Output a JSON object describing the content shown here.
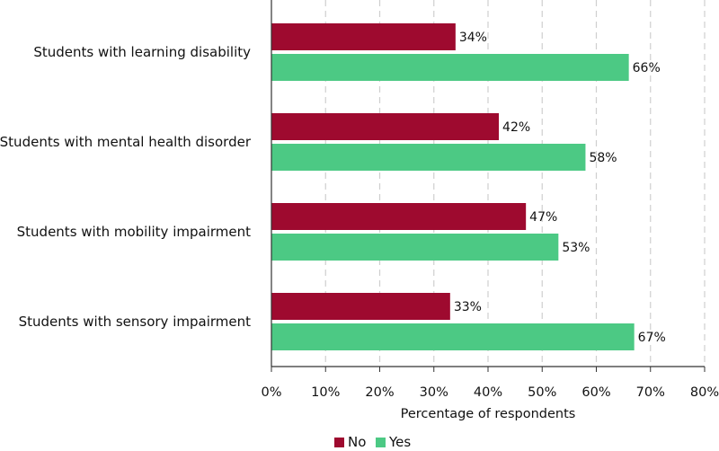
{
  "chart_data": {
    "type": "bar",
    "orientation": "horizontal",
    "categories": [
      "Students with learning disability",
      "Students with mental health disorder",
      "Students with mobility impairment",
      "Students with sensory impairment"
    ],
    "series": [
      {
        "name": "No",
        "color": "#9e0a2f",
        "values": [
          34,
          42,
          47,
          33
        ]
      },
      {
        "name": "Yes",
        "color": "#4cc984",
        "values": [
          66,
          58,
          53,
          67
        ]
      }
    ],
    "value_labels": {
      "No": [
        "34%",
        "42%",
        "47%",
        "33%"
      ],
      "Yes": [
        "66%",
        "58%",
        "53%",
        "67%"
      ]
    },
    "xlabel": "Percentage of respondents",
    "xlim": [
      0,
      80
    ],
    "xticks": [
      0,
      10,
      20,
      30,
      40,
      50,
      60,
      70,
      80
    ],
    "xtick_labels": [
      "0%",
      "10%",
      "20%",
      "30%",
      "40%",
      "50%",
      "60%",
      "70%",
      "80%"
    ],
    "grid": "vertical dashed",
    "legend_position": "bottom-center"
  },
  "legend": {
    "no_label": "No",
    "yes_label": "Yes",
    "no_color": "#9e0a2f",
    "yes_color": "#4cc984"
  }
}
